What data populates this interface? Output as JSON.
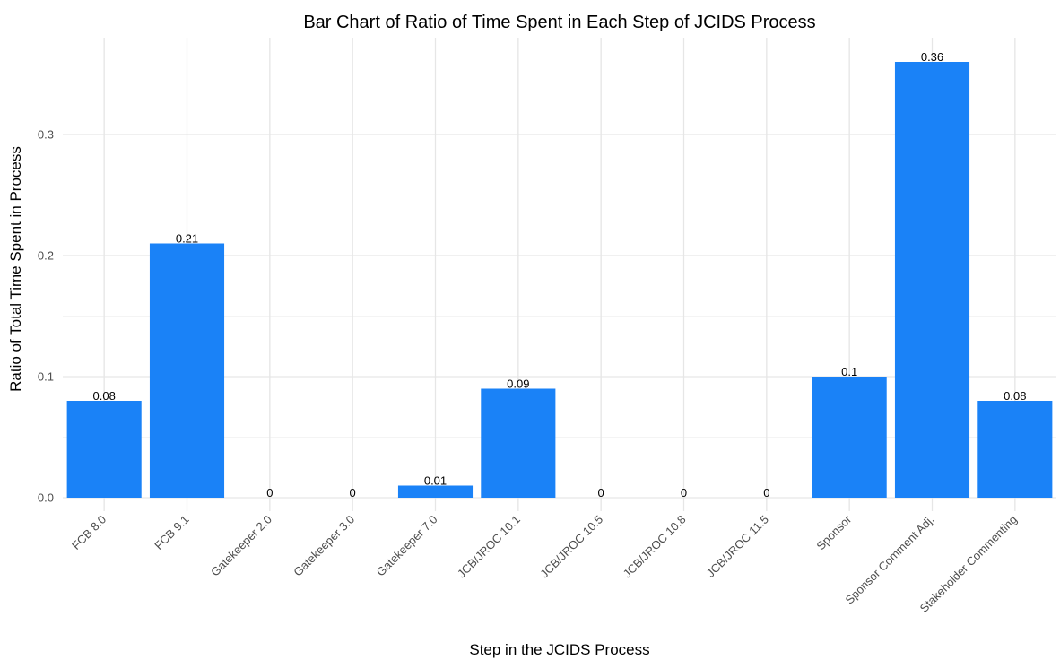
{
  "chart_data": {
    "type": "bar",
    "title": "Bar Chart of Ratio of Time Spent in Each Step of JCIDS Process",
    "xlabel": "Step in the JCIDS Process",
    "ylabel": "Ratio of Total Time Spent in Process",
    "categories": [
      "FCB 8.0",
      "FCB 9.1",
      "Gatekeeper 2.0",
      "Gatekeeper 3.0",
      "Gatekeeper 7.0",
      "JCB/JROC 10.1",
      "JCB/JROC 10.5",
      "JCB/JROC 10.8",
      "JCB/JROC 11.5",
      "Sponsor",
      "Sponsor Comment Adj.",
      "Stakeholder Commenting"
    ],
    "values": [
      0.08,
      0.21,
      0,
      0,
      0.01,
      0.09,
      0,
      0,
      0,
      0.1,
      0.36,
      0.08
    ],
    "data_labels": [
      "0.08",
      "0.21",
      "0",
      "0",
      "0.01",
      "0.09",
      "0",
      "0",
      "0",
      "0.1",
      "0.36",
      "0.08"
    ],
    "y_ticks": [
      0,
      0.1,
      0.2,
      0.3
    ],
    "y_tick_labels": [
      "0.0",
      "0.1",
      "0.2",
      "0.3"
    ],
    "ylim": [
      0,
      0.378
    ],
    "grid": true,
    "legend": "none",
    "bar_color": "#1a82f7"
  }
}
